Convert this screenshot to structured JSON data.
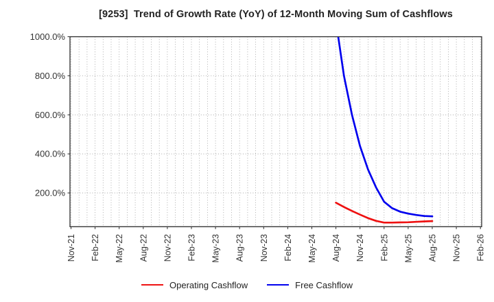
{
  "title": "[9253]  Trend of Growth Rate (YoY) of 12-Month Moving Sum of Cashflows",
  "colors": {
    "operating_cashflow": "#ee1111",
    "free_cashflow": "#0000ee",
    "grid": "#9a9a9a",
    "axis_frame": "#2b2b2b",
    "tick_text": "#333333",
    "title_text": "#222222",
    "background": "#ffffff"
  },
  "chart_data": {
    "type": "line",
    "title": "[9253]  Trend of Growth Rate (YoY) of 12-Month Moving Sum of Cashflows",
    "xlabel": "",
    "ylabel": "",
    "x_tick_labels": [
      "Nov-21",
      "Feb-22",
      "May-22",
      "Aug-22",
      "Nov-22",
      "Feb-23",
      "May-23",
      "Aug-23",
      "Nov-23",
      "Feb-24",
      "May-24",
      "Aug-24",
      "Nov-24",
      "Feb-25",
      "May-25",
      "Aug-25",
      "Nov-25",
      "Feb-26"
    ],
    "x_axis_start_month": "Nov-21",
    "x_axis_end_month": "Feb-26",
    "months_per_tick": 3,
    "y_ticks": [
      {
        "value": 200,
        "label": "200.0%"
      },
      {
        "value": 400,
        "label": "400.0%"
      },
      {
        "value": 600,
        "label": "600.0%"
      },
      {
        "value": 800,
        "label": "800.0%"
      },
      {
        "value": 1000,
        "label": "1000.0%"
      }
    ],
    "ylim": [
      27,
      1000
    ],
    "grid": true,
    "legend_position": "bottom-center",
    "series": [
      {
        "name": "Operating Cashflow",
        "color": "#ee1111",
        "x": [
          "Aug-24",
          "Sep-24",
          "Oct-24",
          "Nov-24",
          "Dec-24",
          "Jan-25",
          "Feb-25",
          "Mar-25",
          "Apr-25",
          "May-25",
          "Jun-25",
          "Jul-25",
          "Aug-25"
        ],
        "values": [
          150,
          128,
          108,
          89,
          71,
          57,
          48,
          48,
          49,
          50,
          52,
          54,
          56
        ]
      },
      {
        "name": "Free Cashflow",
        "color": "#0000ee",
        "x": [
          "Aug-24",
          "Sep-24",
          "Oct-24",
          "Nov-24",
          "Dec-24",
          "Jan-25",
          "Feb-25",
          "Mar-25",
          "Apr-25",
          "May-25",
          "Jun-25",
          "Jul-25",
          "Aug-25"
        ],
        "values": [
          1080,
          800,
          600,
          440,
          320,
          228,
          155,
          122,
          104,
          94,
          87,
          82,
          80
        ]
      }
    ]
  },
  "legend": {
    "items": [
      {
        "label": "Operating Cashflow"
      },
      {
        "label": "Free Cashflow"
      }
    ]
  }
}
